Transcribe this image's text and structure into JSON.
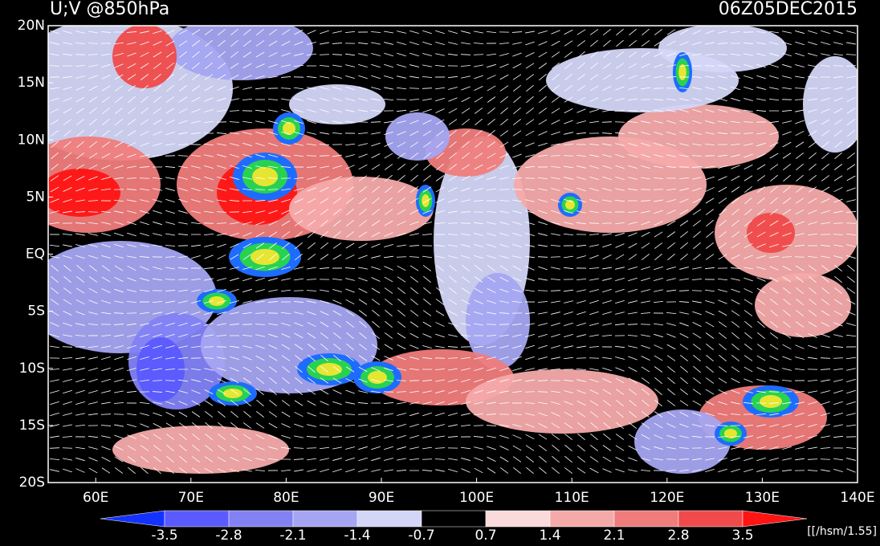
{
  "header": {
    "title": "U;V @850hPa",
    "time": "06Z05DEC2015"
  },
  "axes": {
    "lat_labels": [
      "20N",
      "15N",
      "10N",
      "5N",
      "EQ",
      "5S",
      "10S",
      "15S",
      "20S"
    ],
    "lon_labels": [
      "60E",
      "70E",
      "80E",
      "90E",
      "100E",
      "110E",
      "120E",
      "130E",
      "140E"
    ]
  },
  "colorbar": {
    "labels": [
      "-3.5",
      "-2.8",
      "-2.1",
      "-1.4",
      "-0.7",
      "0.7",
      "1.4",
      "2.1",
      "2.8",
      "3.5"
    ],
    "colors": [
      "#1432ff",
      "#5a5aff",
      "#8282f5",
      "#a5a5f2",
      "#d4d6f8",
      "#000000",
      "#fadada",
      "#f5aaaa",
      "#f07c7c",
      "#f04a4a",
      "#ff1414"
    ],
    "unit": "[[/hsm/1.55]"
  }
}
